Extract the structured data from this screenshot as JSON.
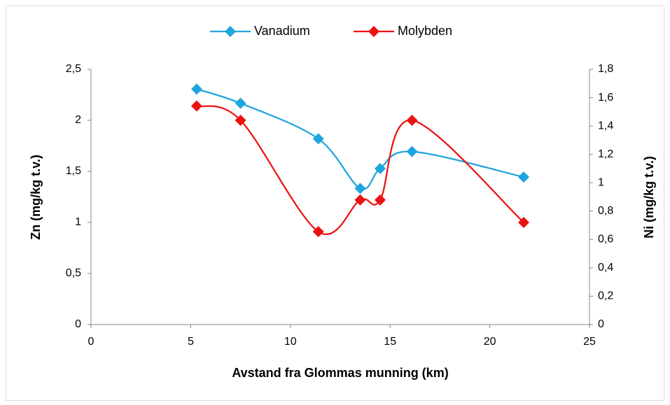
{
  "chart_data": {
    "type": "line",
    "x_label": "Avstand fra Glommas munning (km)",
    "y_label": "Zn (mg/kg t.v.)",
    "y2_label": "Ni (mg/kg t.v.)",
    "x": [
      5.3,
      7.5,
      11.4,
      13.5,
      14.5,
      16.1,
      21.7
    ],
    "series": [
      {
        "name": "Vanadium",
        "color": "#1ea5de",
        "axis": "y2",
        "values": [
          1.66,
          1.56,
          1.31,
          0.96,
          1.1,
          1.22,
          1.04
        ]
      },
      {
        "name": "Molybden",
        "color": "#ee1111",
        "values": [
          2.14,
          2.0,
          0.91,
          1.22,
          1.22,
          2.0,
          1.0
        ]
      }
    ],
    "xlim": [
      0,
      25
    ],
    "xticks": [
      0,
      5,
      10,
      15,
      20,
      25
    ],
    "ylim": [
      0,
      2.5
    ],
    "yticks": [
      0,
      {
        "value": 0.5,
        "label": "0,5"
      },
      1,
      {
        "value": 1.5,
        "label": "1,5"
      },
      2,
      {
        "value": 2.5,
        "label": "2,5"
      }
    ],
    "y2lim": [
      0,
      1.8
    ],
    "y2ticks": [
      0,
      {
        "value": 0.2,
        "label": "0,2"
      },
      {
        "value": 0.4,
        "label": "0,4"
      },
      {
        "value": 0.6,
        "label": "0,6"
      },
      {
        "value": 0.8,
        "label": "0,8"
      },
      1,
      {
        "value": 1.2,
        "label": "1,2"
      },
      {
        "value": 1.4,
        "label": "1,4"
      },
      {
        "value": 1.6,
        "label": "1,6"
      },
      {
        "value": 1.8,
        "label": "1,8"
      }
    ],
    "smooth": true,
    "grid": false,
    "legend": "top"
  }
}
